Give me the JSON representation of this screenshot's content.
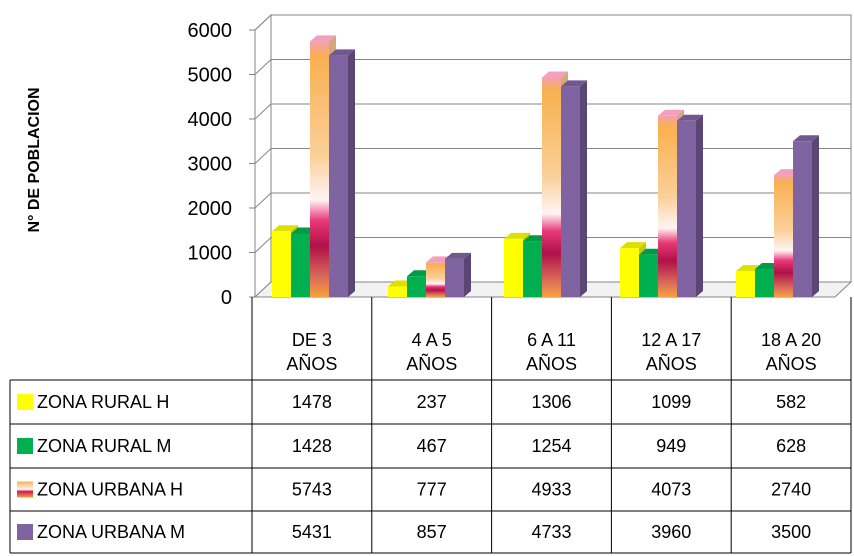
{
  "chart_data": {
    "type": "bar",
    "ylabel": "N° DE POBLACION",
    "ylim": [
      0,
      6000
    ],
    "yticks": [
      "0",
      "1000",
      "2000",
      "3000",
      "4000",
      "5000",
      "6000"
    ],
    "categories": [
      [
        "DE 3",
        "AÑOS"
      ],
      [
        "4 A 5",
        "AÑOS"
      ],
      [
        "6  A 11",
        "AÑOS"
      ],
      [
        "12 A 17",
        "AÑOS"
      ],
      [
        "18 A 20",
        "AÑOS"
      ]
    ],
    "series": [
      {
        "name": "ZONA RURAL H",
        "values": [
          1478,
          237,
          1306,
          1099,
          582
        ],
        "color": "#ffff00",
        "side": "#c8c800"
      },
      {
        "name": "ZONA RURAL M",
        "values": [
          1428,
          467,
          1254,
          949,
          628
        ],
        "color": "#00b050",
        "side": "#007a38"
      },
      {
        "name": "ZONA URBANA H",
        "values": [
          5743,
          777,
          4933,
          4073,
          2740
        ],
        "color": "#f7a64a",
        "side": "#d4a87a"
      },
      {
        "name": "ZONA URBANA M",
        "values": [
          5431,
          857,
          4733,
          3960,
          3500
        ],
        "color": "#8064a2",
        "side": "#5a4575"
      }
    ],
    "table": {
      "labels": [
        "ZONA RURAL H",
        "ZONA RURAL M",
        "ZONA URBANA H",
        "ZONA URBANA M"
      ],
      "rows": [
        [
          "1478",
          "237",
          "1306",
          "1099",
          "582"
        ],
        [
          "1428",
          "467",
          "1254",
          "949",
          "628"
        ],
        [
          "5743",
          "777",
          "4933",
          "4073",
          "2740"
        ],
        [
          "5431",
          "857",
          "4733",
          "3960",
          "3500"
        ]
      ]
    },
    "grid": true,
    "legend": "data-table"
  }
}
